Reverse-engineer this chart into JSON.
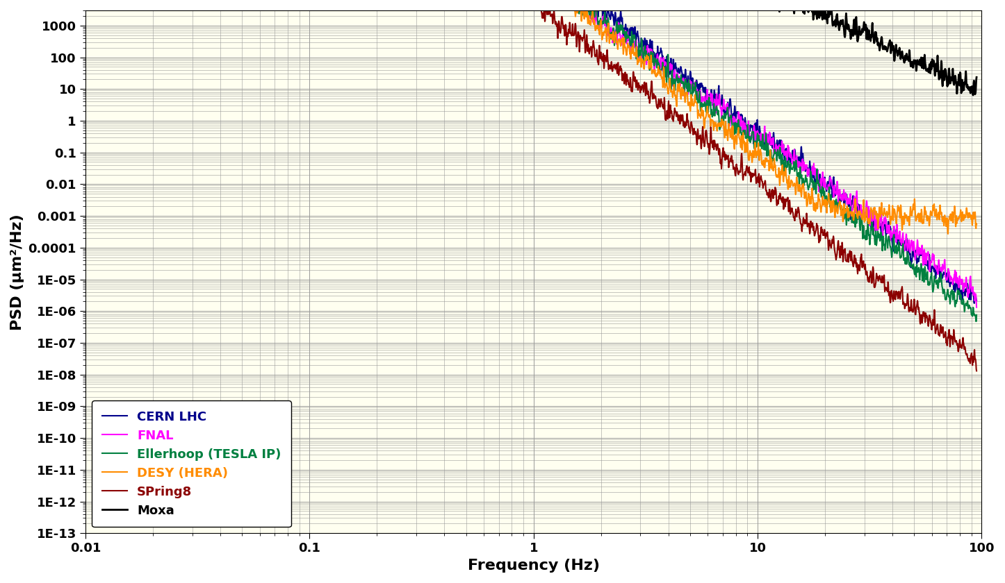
{
  "title": "",
  "xlabel": "Frequency (Hz)",
  "ylabel": "PSD (μm²/Hz)",
  "xlim": [
    0.01,
    100
  ],
  "ylim": [
    1e-13,
    3000
  ],
  "background_color": "#FFFFF0",
  "grid_color": "#999999",
  "series": {
    "CERN LHC": {
      "color": "#00008B",
      "lw": 1.5
    },
    "FNAL": {
      "color": "#FF00FF",
      "lw": 1.5
    },
    "Ellerhoop (TESLA IP)": {
      "color": "#008040",
      "lw": 1.5
    },
    "DESY (HERA)": {
      "color": "#FF8C00",
      "lw": 1.5
    },
    "SPring8": {
      "color": "#8B0000",
      "lw": 1.5
    },
    "Moxa": {
      "color": "#000000",
      "lw": 2.0
    }
  },
  "legend_loc": "lower left",
  "legend_fontsize": 13,
  "axis_label_fontsize": 16,
  "tick_label_fontsize": 13,
  "axis_label_fontweight": "bold"
}
